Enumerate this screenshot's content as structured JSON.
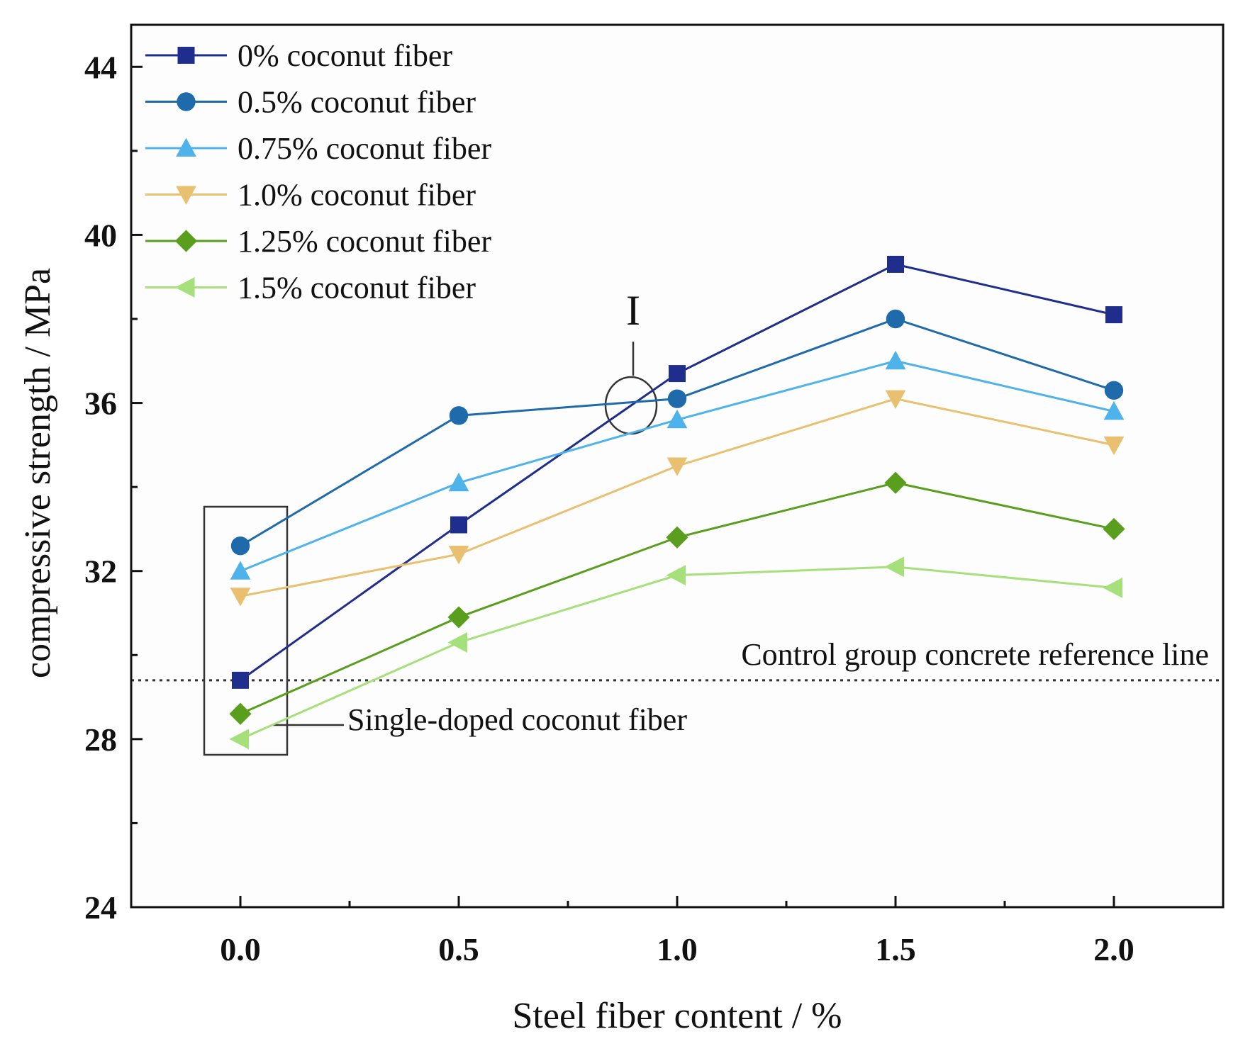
{
  "chart_data": {
    "type": "line",
    "title": "",
    "xlabel": "Steel fiber content / %",
    "ylabel": "compressive strength / MPa",
    "x": [
      0.0,
      0.5,
      1.0,
      1.5,
      2.0
    ],
    "x_tick_labels": [
      "0.0",
      "0.5",
      "1.0",
      "1.5",
      "2.0"
    ],
    "y_tick_labels": [
      "24",
      "28",
      "32",
      "36",
      "40",
      "44"
    ],
    "xlim": [
      -0.25,
      2.25
    ],
    "ylim": [
      24,
      45
    ],
    "y_major_ticks": [
      24,
      28,
      32,
      36,
      40,
      44
    ],
    "grid": false,
    "legend_position": "top-left",
    "series": [
      {
        "name": "0% coconut fiber",
        "marker": "square",
        "color": "#1f2e8c",
        "values": [
          29.4,
          33.1,
          36.7,
          39.3,
          38.1
        ]
      },
      {
        "name": "0.5% coconut fiber",
        "marker": "circle",
        "color": "#1f6aaa",
        "values": [
          32.6,
          35.7,
          36.1,
          38.0,
          36.3
        ]
      },
      {
        "name": "0.75% coconut fiber",
        "marker": "triangle-up",
        "color": "#4db3ea",
        "values": [
          32.0,
          34.1,
          35.6,
          37.0,
          35.8
        ]
      },
      {
        "name": "1.0% coconut fiber",
        "marker": "triangle-down",
        "color": "#e8c070",
        "values": [
          31.4,
          32.4,
          34.5,
          36.1,
          35.0
        ]
      },
      {
        "name": "1.25% coconut fiber",
        "marker": "diamond",
        "color": "#5a9e1e",
        "values": [
          28.6,
          30.9,
          32.8,
          34.1,
          33.0
        ]
      },
      {
        "name": "1.5% coconut fiber",
        "marker": "triangle-left",
        "color": "#a5e07a",
        "values": [
          28.0,
          30.3,
          31.9,
          32.1,
          31.6
        ]
      }
    ],
    "reference_line": {
      "label": "Control group concrete reference line",
      "y": 29.4
    },
    "annotations": {
      "single_doped": "Single-doped coconut fiber",
      "crossing_marker": "I"
    }
  }
}
